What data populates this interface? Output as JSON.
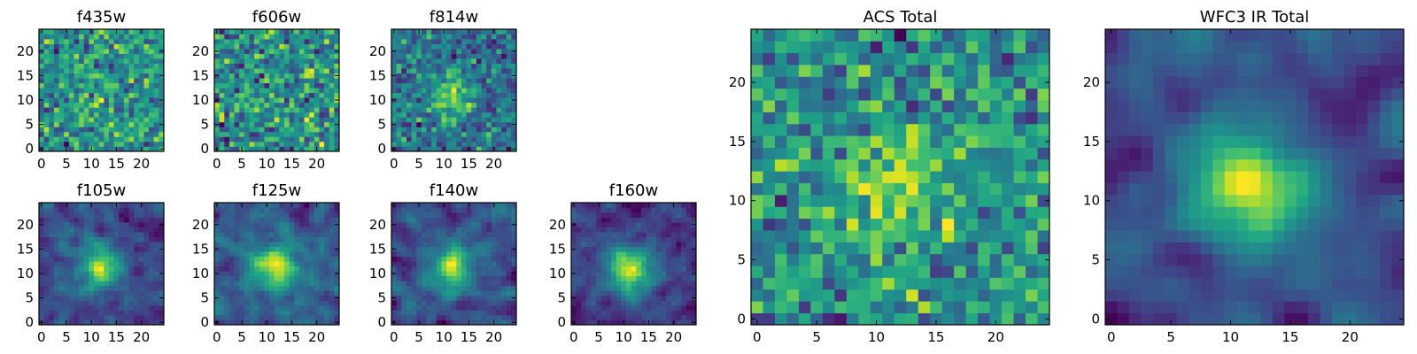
{
  "chart_data": [
    {
      "type": "heatmap",
      "title": "f435w",
      "grid_size": 25,
      "seed": 11,
      "center_strength": 0.05,
      "smooth": 0,
      "xticks": [
        0,
        5,
        10,
        15,
        20
      ],
      "yticks": [
        0,
        5,
        10,
        15,
        20
      ],
      "xlim": [
        0,
        24
      ],
      "ylim": [
        0,
        24
      ],
      "colormap": "viridis"
    },
    {
      "type": "heatmap",
      "title": "f606w",
      "grid_size": 25,
      "seed": 23,
      "center_strength": 0.05,
      "smooth": 0,
      "xticks": [
        0,
        5,
        10,
        15,
        20
      ],
      "yticks": [
        0,
        5,
        10,
        15,
        20
      ],
      "xlim": [
        0,
        24
      ],
      "ylim": [
        0,
        24
      ],
      "colormap": "viridis"
    },
    {
      "type": "heatmap",
      "title": "f814w",
      "grid_size": 25,
      "seed": 37,
      "center_strength": 0.35,
      "smooth": 0,
      "xticks": [
        0,
        5,
        10,
        15,
        20
      ],
      "yticks": [
        0,
        5,
        10,
        15,
        20
      ],
      "xlim": [
        0,
        24
      ],
      "ylim": [
        0,
        24
      ],
      "colormap": "viridis"
    },
    {
      "type": "heatmap",
      "title": "f105w",
      "grid_size": 25,
      "seed": 41,
      "center_strength": 0.6,
      "smooth": 1,
      "xticks": [
        0,
        5,
        10,
        15,
        20
      ],
      "yticks": [
        0,
        5,
        10,
        15,
        20
      ],
      "xlim": [
        0,
        24
      ],
      "ylim": [
        0,
        24
      ],
      "colormap": "viridis"
    },
    {
      "type": "heatmap",
      "title": "f125w",
      "grid_size": 25,
      "seed": 53,
      "center_strength": 0.6,
      "smooth": 1,
      "xticks": [
        0,
        5,
        10,
        15,
        20
      ],
      "yticks": [
        0,
        5,
        10,
        15,
        20
      ],
      "xlim": [
        0,
        24
      ],
      "ylim": [
        0,
        24
      ],
      "colormap": "viridis"
    },
    {
      "type": "heatmap",
      "title": "f140w",
      "grid_size": 25,
      "seed": 67,
      "center_strength": 0.6,
      "smooth": 1,
      "xticks": [
        0,
        5,
        10,
        15,
        20
      ],
      "yticks": [
        0,
        5,
        10,
        15,
        20
      ],
      "xlim": [
        0,
        24
      ],
      "ylim": [
        0,
        24
      ],
      "colormap": "viridis"
    },
    {
      "type": "heatmap",
      "title": "f160w",
      "grid_size": 25,
      "seed": 79,
      "center_strength": 0.7,
      "smooth": 1,
      "xticks": [
        0,
        5,
        10,
        15,
        20
      ],
      "yticks": [
        0,
        5,
        10,
        15,
        20
      ],
      "xlim": [
        0,
        24
      ],
      "ylim": [
        0,
        24
      ],
      "colormap": "viridis"
    },
    {
      "type": "heatmap",
      "title": "ACS Total",
      "grid_size": 25,
      "seed": 97,
      "center_strength": 0.25,
      "smooth": 0,
      "xticks": [
        0,
        5,
        10,
        15,
        20
      ],
      "yticks": [
        0,
        5,
        10,
        15,
        20
      ],
      "xlim": [
        0,
        24
      ],
      "ylim": [
        0,
        24
      ],
      "colormap": "viridis"
    },
    {
      "type": "heatmap",
      "title": "WFC3 IR Total",
      "grid_size": 25,
      "seed": 113,
      "center_strength": 0.9,
      "smooth": 2,
      "xticks": [
        0,
        5,
        10,
        15,
        20
      ],
      "yticks": [
        0,
        5,
        10,
        15,
        20
      ],
      "xlim": [
        0,
        24
      ],
      "ylim": [
        0,
        24
      ],
      "colormap": "viridis"
    }
  ]
}
